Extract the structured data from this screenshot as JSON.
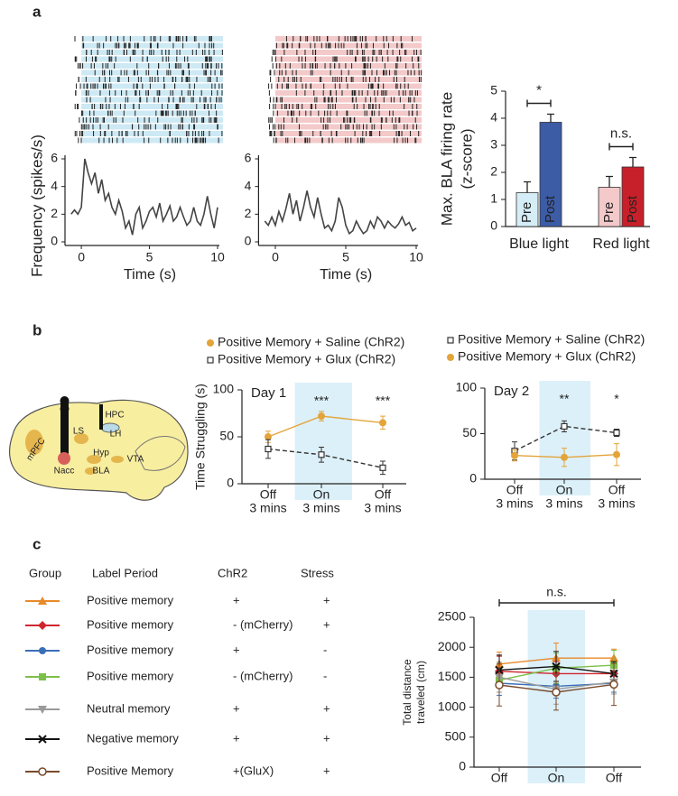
{
  "panel_labels": [
    "a",
    "b",
    "c"
  ],
  "brain_diagram": {
    "labels": [
      "mPFC",
      "LS",
      "HPC",
      "LH",
      "Nacc",
      "Hyp",
      "VTA",
      "BLA"
    ]
  },
  "chart_data": [
    {
      "type": "trace",
      "ylabel": "Frequency (spikes/s)",
      "xlabel": "Time (s)",
      "color": "#444444",
      "raster_color": "#cde9f4",
      "x": [
        -0.75,
        -0.5,
        -0.25,
        0,
        0.25,
        0.5,
        0.75,
        1,
        1.25,
        1.5,
        1.75,
        2,
        2.25,
        2.5,
        2.75,
        3,
        3.25,
        3.5,
        3.75,
        4,
        4.25,
        4.5,
        4.75,
        5,
        5.25,
        5.5,
        5.75,
        6,
        6.25,
        6.5,
        6.75,
        7,
        7.25,
        7.5,
        7.75,
        8,
        8.25,
        8.5,
        8.75,
        9,
        9.25,
        9.5,
        9.75,
        10
      ],
      "values": [
        2,
        2.3,
        2,
        2.5,
        6,
        5,
        4.2,
        5,
        3.5,
        4.5,
        3,
        3.5,
        2.5,
        2,
        3,
        2.2,
        1,
        1.5,
        0.5,
        2,
        2.5,
        1,
        1.5,
        2.2,
        2.5,
        1.8,
        2.8,
        1.5,
        2,
        2.6,
        1.5,
        1.8,
        2.5,
        1.8,
        1.2,
        1.5,
        2.5,
        1.5,
        1.2,
        2,
        3.3,
        2,
        1,
        2.5
      ],
      "xlim": [
        -1,
        10
      ],
      "xticks": [
        0,
        5,
        10
      ],
      "ylim": [
        0,
        6
      ],
      "yticks": [
        0,
        2,
        4,
        6
      ]
    },
    {
      "type": "trace",
      "xlabel": "Time (s)",
      "color": "#444444",
      "raster_color": "#f3c9c9",
      "x": [
        -0.75,
        -0.5,
        -0.25,
        0,
        0.25,
        0.5,
        0.75,
        1,
        1.25,
        1.5,
        1.75,
        2,
        2.25,
        2.5,
        2.75,
        3,
        3.25,
        3.5,
        3.75,
        4,
        4.25,
        4.5,
        4.75,
        5,
        5.25,
        5.5,
        5.75,
        6,
        6.25,
        6.5,
        6.75,
        7,
        7.25,
        7.5,
        7.75,
        8,
        8.25,
        8.5,
        8.75,
        9,
        9.25,
        9.5,
        9.75,
        10
      ],
      "values": [
        1.5,
        1.2,
        1.8,
        1.2,
        2.2,
        1.5,
        2.4,
        3.5,
        2,
        3,
        1.5,
        2.5,
        3.7,
        2.5,
        1.8,
        3.2,
        2,
        1,
        1.2,
        0.8,
        1.5,
        3.2,
        2.5,
        1.2,
        0.6,
        0.8,
        1.5,
        1,
        0.6,
        0.8,
        1.5,
        1,
        1.8,
        1.5,
        1,
        1.5,
        1.2,
        1,
        1.3,
        1.8,
        1.2,
        1.4,
        0.8,
        1
      ],
      "xlim": [
        -1,
        10
      ],
      "xticks": [
        0,
        5,
        10
      ],
      "ylim": [
        0,
        6
      ],
      "yticks": [
        0,
        2,
        4,
        6
      ]
    },
    {
      "type": "bar",
      "ylabel": [
        "Max. BLA firing rate",
        "(z-score)"
      ],
      "categories": [
        "Blue light",
        "Red light"
      ],
      "series": [
        {
          "name": "Pre",
          "colors": [
            "#d5edf6",
            "#f3c9c9"
          ],
          "values": [
            1.25,
            1.45
          ],
          "errors": [
            0.4,
            0.4
          ]
        },
        {
          "name": "Post",
          "colors": [
            "#3d5ca6",
            "#c8202a"
          ],
          "values": [
            3.85,
            2.2
          ],
          "errors": [
            0.3,
            0.35
          ]
        }
      ],
      "annotations": [
        "*",
        "n.s."
      ],
      "ylim": [
        0,
        5
      ],
      "yticks": [
        0,
        1,
        2,
        3,
        4,
        5
      ]
    },
    {
      "type": "category_line",
      "label": "Day 1",
      "ylabel": "Time Struggling (s)",
      "categories": [
        "Off",
        "On",
        "Off"
      ],
      "category_sublabel": "3 mins",
      "highlight": 1,
      "highlight_color": "#dcf0f9",
      "series": [
        {
          "name": "Positive Memory + Saline (ChR2)",
          "color": "#e3a43a",
          "marker": "circle",
          "dashed": false,
          "values": [
            50,
            72,
            65
          ],
          "errors": [
            6,
            5,
            7
          ]
        },
        {
          "name": "Positive Memory + Glux (ChR2)",
          "color": "#333333",
          "marker": "square-open",
          "dashed": true,
          "values": [
            37,
            31,
            17
          ],
          "errors": [
            10,
            8,
            7
          ]
        }
      ],
      "annotations": [
        null,
        "***",
        "***"
      ],
      "ylim": [
        0,
        100
      ],
      "yticks": [
        0,
        50,
        100
      ]
    },
    {
      "type": "category_line",
      "label": "Day 2",
      "categories": [
        "Off",
        "On",
        "Off"
      ],
      "category_sublabel": "3 mins",
      "highlight": 1,
      "highlight_color": "#dcf0f9",
      "series": [
        {
          "name": "Positive Memory + Saline (ChR2)",
          "color": "#333333",
          "marker": "square-open",
          "dashed": true,
          "values": [
            31,
            58,
            51
          ],
          "errors": [
            10,
            6,
            4
          ]
        },
        {
          "name": "Positive Memory + Glux (ChR2)",
          "color": "#e3a43a",
          "marker": "circle",
          "dashed": false,
          "values": [
            26,
            24,
            27
          ],
          "errors": [
            6,
            10,
            12
          ]
        }
      ],
      "annotations": [
        null,
        "**",
        "*"
      ],
      "ylim": [
        0,
        100
      ],
      "yticks": [
        0,
        50,
        100
      ]
    },
    {
      "type": "category_line",
      "ylabel": [
        "Total distance",
        "traveled (cm)"
      ],
      "categories": [
        "Off",
        "On",
        "Off"
      ],
      "highlight": 1,
      "highlight_color": "#dcf0f9",
      "annotation": "n.s.",
      "table_headers": [
        "Group",
        "Label Period",
        "ChR2",
        "Stress"
      ],
      "series": [
        {
          "label_period": "Positive memory",
          "chr2": "+",
          "stress": "+",
          "color": "#e8892a",
          "marker": "triangle",
          "values": [
            1720,
            1820,
            1820
          ],
          "errors": [
            200,
            250,
            150
          ]
        },
        {
          "label_period": "Positive memory",
          "chr2": "- (mCherry)",
          "stress": "+",
          "color": "#d0262e",
          "marker": "diamond",
          "values": [
            1600,
            1560,
            1560
          ],
          "errors": [
            250,
            200,
            200
          ]
        },
        {
          "label_period": "Positive memory",
          "chr2": "+",
          "stress": "-",
          "color": "#3a6fb7",
          "marker": "circle",
          "values": [
            1400,
            1350,
            1400
          ],
          "errors": [
            200,
            200,
            150
          ]
        },
        {
          "label_period": "Positive memory",
          "chr2": "- (mCherry)",
          "stress": "-",
          "color": "#7cc04a",
          "marker": "square",
          "values": [
            1450,
            1650,
            1700
          ],
          "errors": [
            200,
            250,
            250
          ]
        },
        {
          "label_period": "Neutral memory",
          "chr2": "+",
          "stress": "+",
          "color": "#9a9a9a",
          "marker": "triangle-down",
          "values": [
            1500,
            1300,
            1420
          ],
          "errors": [
            250,
            250,
            200
          ]
        },
        {
          "label_period": "Negative memory",
          "chr2": "+",
          "stress": "+",
          "color": "#111111",
          "marker": "x",
          "values": [
            1620,
            1680,
            1560
          ],
          "errors": [
            250,
            250,
            200
          ]
        },
        {
          "label_period": "Positive Memory",
          "chr2": "+(GluX)",
          "stress": "+",
          "color": "#7a4a2a",
          "marker": "circle-open",
          "values": [
            1370,
            1250,
            1380
          ],
          "errors": [
            350,
            300,
            350
          ]
        }
      ],
      "ylim": [
        0,
        2500
      ],
      "yticks": [
        0,
        500,
        1000,
        1500,
        2000,
        2500
      ]
    }
  ]
}
